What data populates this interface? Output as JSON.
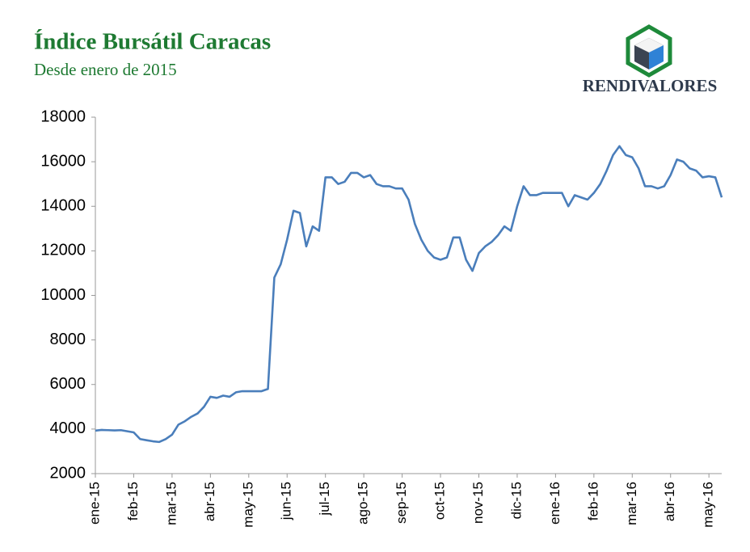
{
  "chart_data": {
    "type": "line",
    "title": "Índice Bursátil Caracas",
    "subtitle": "Desde enero de 2015",
    "logo": "RENDIVALORES",
    "color": "#4a7ebb",
    "categories": [
      "ene-15",
      null,
      null,
      null,
      null,
      null,
      "feb-15",
      null,
      null,
      null,
      null,
      null,
      "mar-15",
      null,
      null,
      null,
      null,
      null,
      "abr-15",
      null,
      null,
      null,
      null,
      null,
      "may-15",
      null,
      null,
      null,
      null,
      null,
      "jun-15",
      null,
      null,
      null,
      null,
      null,
      "jul-15",
      null,
      null,
      null,
      null,
      null,
      "ago-15",
      null,
      null,
      null,
      null,
      null,
      "sep-15",
      null,
      null,
      null,
      null,
      null,
      "oct-15",
      null,
      null,
      null,
      null,
      null,
      "nov-15",
      null,
      null,
      null,
      null,
      null,
      "dic-15",
      null,
      null,
      null,
      null,
      null,
      "ene-16",
      null,
      null,
      null,
      null,
      null,
      "feb-16",
      null,
      null,
      null,
      null,
      null,
      "mar-16",
      null,
      null,
      null,
      null,
      null,
      "abr-16",
      null,
      null,
      null,
      null,
      null,
      "may-16",
      null,
      null
    ],
    "values": [
      3930,
      3960,
      3950,
      3940,
      3950,
      3900,
      3850,
      3550,
      3500,
      3450,
      3420,
      3550,
      3750,
      4200,
      4350,
      4550,
      4700,
      5000,
      5450,
      5400,
      5500,
      5450,
      5650,
      5700,
      5700,
      5700,
      5700,
      5800,
      10800,
      11400,
      12500,
      13800,
      13700,
      12200,
      13100,
      12900,
      15300,
      15300,
      15000,
      15100,
      15500,
      15500,
      15300,
      15400,
      15000,
      14900,
      14900,
      14800,
      14800,
      14300,
      13200,
      12500,
      12000,
      11700,
      11600,
      11700,
      12600,
      12600,
      11600,
      11100,
      11900,
      12200,
      12400,
      12700,
      13100,
      12900,
      14000,
      14900,
      14500,
      14500,
      14600,
      14600,
      14600,
      14600,
      14000,
      14500,
      14400,
      14300,
      14600,
      15000,
      15600,
      16300,
      16700,
      16300,
      16200,
      15700,
      14900,
      14900,
      14800,
      14900,
      15400,
      16100,
      16000,
      15700,
      15600,
      15300,
      15350,
      15300,
      14400
    ],
    "ylim": [
      2000,
      18000
    ],
    "yticks": [
      2000,
      4000,
      6000,
      8000,
      10000,
      12000,
      14000,
      16000,
      18000
    ],
    "grid": false
  }
}
